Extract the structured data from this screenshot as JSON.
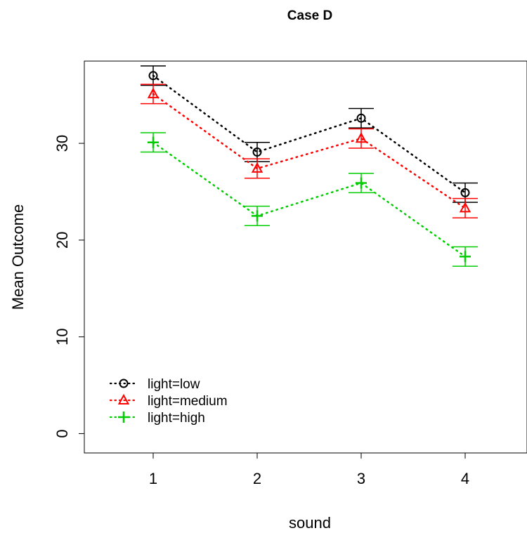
{
  "chart_data": {
    "type": "line",
    "title": "Case D",
    "xlabel": "sound",
    "ylabel": "Mean Outcome",
    "categories": [
      "1",
      "2",
      "3",
      "4"
    ],
    "x_ticks": [
      "1",
      "2",
      "3",
      "4"
    ],
    "y_ticks": [
      "0",
      "10",
      "20",
      "30"
    ],
    "y_tick_values": [
      0,
      10,
      20,
      30
    ],
    "ylim": [
      -2,
      38.5
    ],
    "grid": false,
    "legend_position": "bottom-left",
    "error_bars": true,
    "series": [
      {
        "name": "light=low",
        "color": "#000000",
        "marker": "circle",
        "values": [
          37.0,
          29.1,
          32.6,
          24.9
        ],
        "lower": [
          36.0,
          28.1,
          31.6,
          23.9
        ],
        "upper": [
          38.0,
          30.1,
          33.6,
          25.9
        ]
      },
      {
        "name": "light=medium",
        "color": "#ff0000",
        "marker": "triangle",
        "values": [
          35.1,
          27.4,
          30.5,
          23.3
        ],
        "lower": [
          34.1,
          26.4,
          29.5,
          22.3
        ],
        "upper": [
          36.1,
          28.4,
          31.5,
          24.3
        ]
      },
      {
        "name": "light=high",
        "color": "#00cd00",
        "marker": "plus",
        "values": [
          30.1,
          22.5,
          25.9,
          18.3
        ],
        "lower": [
          29.1,
          21.5,
          24.9,
          17.3
        ],
        "upper": [
          31.1,
          23.5,
          26.9,
          19.3
        ]
      }
    ]
  }
}
